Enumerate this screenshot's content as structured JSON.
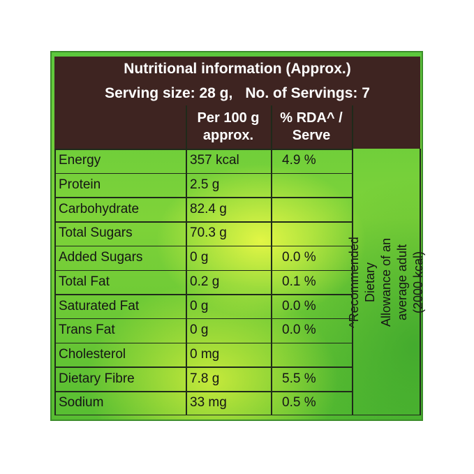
{
  "title": "Nutritional information (Approx.)",
  "serving": {
    "size": "Serving size: 28 g,",
    "count": "No. of Servings: 7"
  },
  "columns": {
    "per100_line1": "Per 100 g",
    "per100_line2": "approx.",
    "rda_line1": "% RDA^ /",
    "rda_line2": "Serve"
  },
  "rows": [
    {
      "name": "Energy",
      "per100": "357 kcal",
      "rda": "4.9 %"
    },
    {
      "name": "Protein",
      "per100": "2.5 g",
      "rda": ""
    },
    {
      "name": "Carbohydrate",
      "per100": "82.4 g",
      "rda": ""
    },
    {
      "name": "Total Sugars",
      "per100": "70.3 g",
      "rda": ""
    },
    {
      "name": "Added Sugars",
      "per100": "0 g",
      "rda": "0.0 %"
    },
    {
      "name": "Total Fat",
      "per100": "0.2 g",
      "rda": "0.1 %"
    },
    {
      "name": "Saturated Fat",
      "per100": "0 g",
      "rda": "0.0 %"
    },
    {
      "name": "Trans Fat",
      "per100": "0 g",
      "rda": "0.0 %"
    },
    {
      "name": "Cholesterol",
      "per100": "0 mg",
      "rda": ""
    },
    {
      "name": "Dietary Fibre",
      "per100": "7.8 g",
      "rda": "5.5 %"
    },
    {
      "name": "Sodium",
      "per100": "33 mg",
      "rda": "0.5 %"
    }
  ],
  "footnote": "^Recommended Dietary Allowance of an average adult (2000 kcal)",
  "colors": {
    "header_brown": "#3e2421",
    "panel_green": "#5cc83c",
    "highlight_yellow": "#e8f846",
    "border_green": "#3d8e2b"
  }
}
